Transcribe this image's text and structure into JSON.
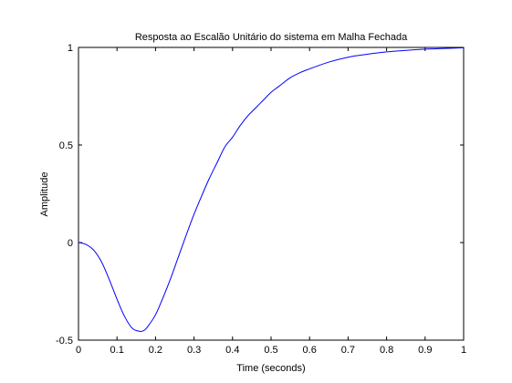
{
  "chart_data": {
    "type": "line",
    "title": "Resposta ao Escalão Unitário do sistema em Malha Fechada",
    "xlabel": "Time (seconds)",
    "ylabel": "Amplitude",
    "xlim": [
      0,
      1
    ],
    "ylim": [
      -0.5,
      1
    ],
    "xticks": [
      0,
      0.1,
      0.2,
      0.3,
      0.4,
      0.5,
      0.6,
      0.7,
      0.8,
      0.9,
      1
    ],
    "xtick_labels": [
      "0",
      "0.1",
      "0.2",
      "0.3",
      "0.4",
      "0.5",
      "0.6",
      "0.7",
      "0.8",
      "0.9",
      "1"
    ],
    "yticks": [
      -0.5,
      0,
      0.5,
      1
    ],
    "ytick_labels": [
      "-0.5",
      "0",
      "0.5",
      "1"
    ],
    "grid": false,
    "line_color": "#0000ff",
    "series": [
      {
        "x": [
          0,
          0.02,
          0.04,
          0.06,
          0.08,
          0.1,
          0.12,
          0.14,
          0.16,
          0.17,
          0.18,
          0.2,
          0.22,
          0.24,
          0.26,
          0.28,
          0.3,
          0.32,
          0.34,
          0.36,
          0.38,
          0.4,
          0.42,
          0.44,
          0.46,
          0.48,
          0.5,
          0.52,
          0.55,
          0.58,
          0.6,
          0.65,
          0.7,
          0.75,
          0.8,
          0.85,
          0.9,
          0.95,
          1.0
        ],
        "y": [
          0,
          -0.01,
          -0.04,
          -0.1,
          -0.19,
          -0.29,
          -0.38,
          -0.44,
          -0.455,
          -0.45,
          -0.43,
          -0.37,
          -0.28,
          -0.18,
          -0.07,
          0.04,
          0.145,
          0.24,
          0.33,
          0.41,
          0.49,
          0.54,
          0.6,
          0.65,
          0.69,
          0.73,
          0.77,
          0.8,
          0.845,
          0.875,
          0.89,
          0.925,
          0.95,
          0.965,
          0.977,
          0.985,
          0.991,
          0.995,
          0.998
        ]
      }
    ]
  }
}
